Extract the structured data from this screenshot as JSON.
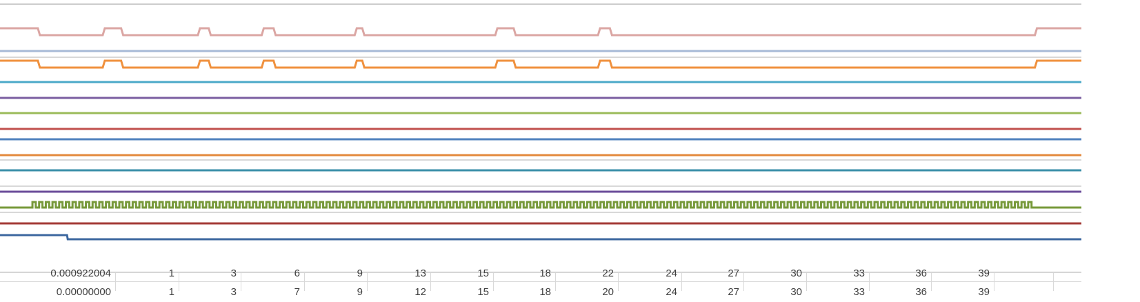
{
  "chart_data": {
    "type": "line",
    "title": "",
    "xlabel": "",
    "ylabel": "",
    "grid": true,
    "x_range": [
      0,
      1
    ],
    "series": [
      {
        "color": "#dba6a3",
        "kind": "pulses",
        "base": "low",
        "start_high": true,
        "start_end": 0.035,
        "pulses": [
          [
            0.095,
            0.112
          ],
          [
            0.183,
            0.193
          ],
          [
            0.242,
            0.253
          ],
          [
            0.328,
            0.335
          ],
          [
            0.458,
            0.475
          ],
          [
            0.553,
            0.564
          ]
        ],
        "end_high_from": 0.957
      },
      {
        "color": "#a7b9d6",
        "kind": "flat"
      },
      {
        "color": "#f0913e",
        "kind": "pulses",
        "base": "low",
        "start_high": true,
        "start_end": 0.035,
        "pulses": [
          [
            0.095,
            0.112
          ],
          [
            0.183,
            0.193
          ],
          [
            0.242,
            0.253
          ],
          [
            0.328,
            0.335
          ],
          [
            0.458,
            0.475
          ],
          [
            0.553,
            0.564
          ]
        ],
        "end_high_from": 0.957
      },
      {
        "color": "#4ba9c8",
        "kind": "flat"
      },
      {
        "color": "#7a5ea0",
        "kind": "flat"
      },
      {
        "color": "#9bbb59",
        "kind": "flat"
      },
      {
        "color": "#c0504d",
        "kind": "flat"
      },
      {
        "color": "#4f81bd",
        "kind": "flat"
      },
      {
        "color": "#e3893d",
        "kind": "flat"
      },
      {
        "color": "#3a8fa8",
        "kind": "flat"
      },
      {
        "color": "#6b4c9a",
        "kind": "flat"
      },
      {
        "color": "#77993a",
        "kind": "clock",
        "start": 0.03,
        "end": 0.957,
        "cycles": 150
      },
      {
        "color": "#a33a36",
        "kind": "flat"
      },
      {
        "color": "#3c679f",
        "kind": "step_down",
        "at": 0.062
      }
    ]
  },
  "sheet": {
    "row_a": [
      "0.000922004",
      "1",
      "3",
      "6",
      "9",
      "13",
      "15",
      "18",
      "22",
      "24",
      "27",
      "30",
      "33",
      "36",
      "39",
      "",
      ""
    ],
    "row_b": [
      "0.00000000",
      "1",
      "3",
      "7",
      "9",
      "12",
      "15",
      "18",
      "20",
      "24",
      "27",
      "30",
      "33",
      "36",
      "39",
      "",
      ""
    ]
  }
}
